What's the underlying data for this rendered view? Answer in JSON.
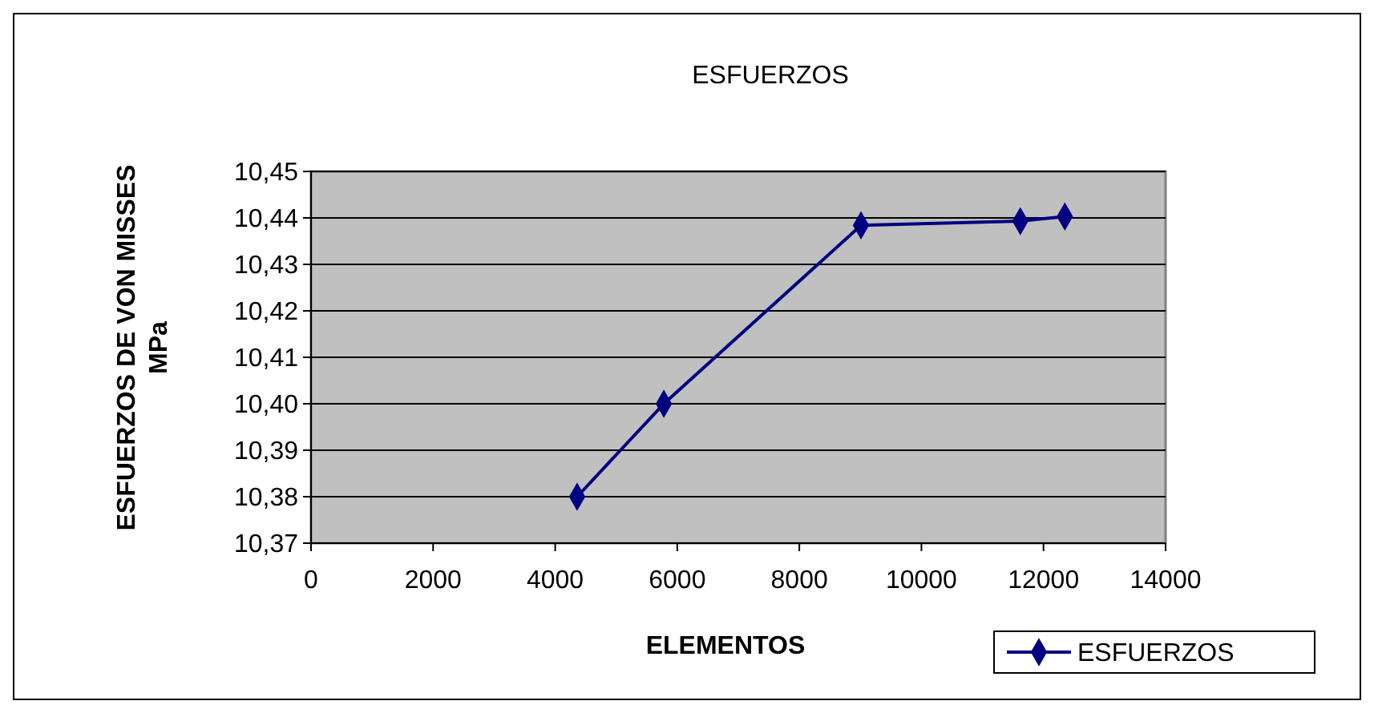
{
  "chart_data": {
    "type": "line",
    "title": "ESFUERZOS",
    "xlabel": "ELEMENTOS",
    "ylabel": "ESFUERZOS DE VON MISSES MPa",
    "x": [
      4360,
      5780,
      9010,
      11620,
      12350
    ],
    "series": [
      {
        "name": "ESFUERZOS",
        "color": "#000080",
        "values": [
          10.38,
          10.4,
          10.4384,
          10.4393,
          10.4403
        ]
      }
    ],
    "xlim": [
      0,
      14000
    ],
    "xticks": [
      0,
      2000,
      4000,
      6000,
      8000,
      10000,
      12000,
      14000
    ],
    "ylim": [
      10.37,
      10.45
    ],
    "yticks": [
      {
        "value": 10.37,
        "label": "10,37"
      },
      {
        "value": 10.38,
        "label": "10,38"
      },
      {
        "value": 10.39,
        "label": "10,39"
      },
      {
        "value": 10.4,
        "label": "10,40"
      },
      {
        "value": 10.41,
        "label": "10,41"
      },
      {
        "value": 10.42,
        "label": "10,42"
      },
      {
        "value": 10.43,
        "label": "10,43"
      },
      {
        "value": 10.44,
        "label": "10,44"
      },
      {
        "value": 10.45,
        "label": "10,45"
      }
    ],
    "grid": "y",
    "legend": "bottom right",
    "marker": "diamond",
    "line_style": "solid"
  }
}
